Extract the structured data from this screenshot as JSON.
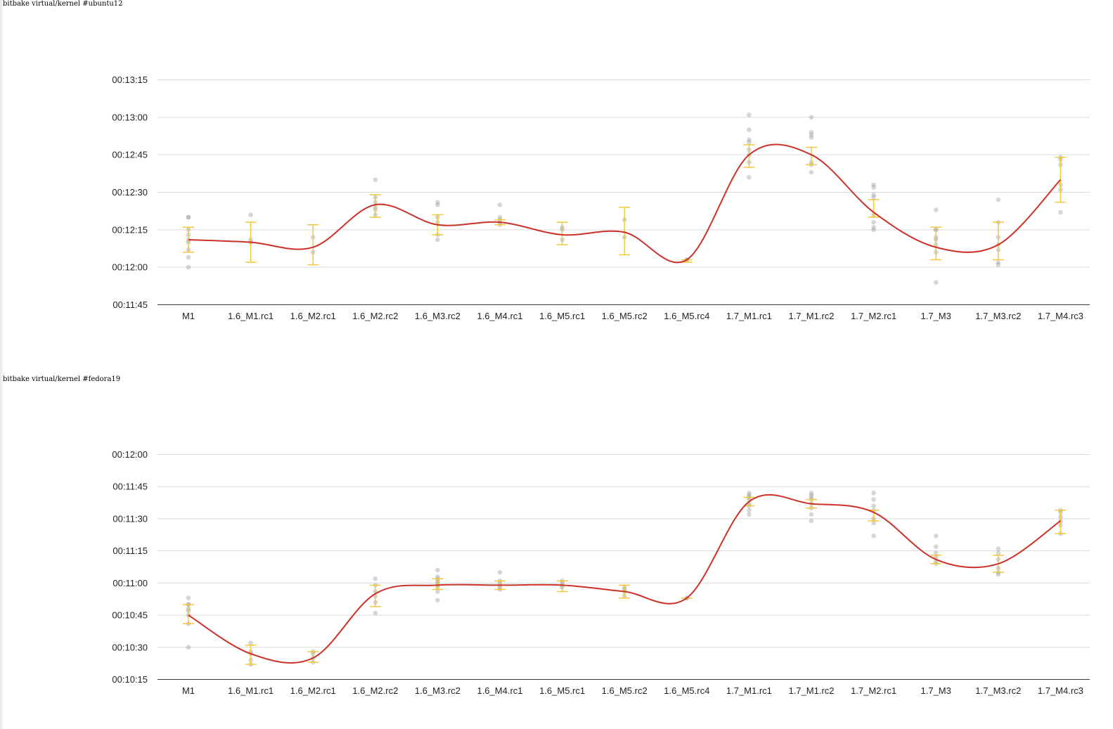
{
  "chart_data": [
    {
      "type": "line",
      "title": "bitbake virtual/kernel #ubuntu12",
      "categories": [
        "M1",
        "1.6_M1.rc1",
        "1.6_M2.rc1",
        "1.6_M2.rc2",
        "1.6_M3.rc2",
        "1.6_M4.rc1",
        "1.6_M5.rc1",
        "1.6_M5.rc2",
        "1.6_M5.rc4",
        "1.7_M1.rc1",
        "1.7_M1.rc2",
        "1.7_M2.rc1",
        "1.7_M3",
        "1.7_M3.rc2",
        "1.7_M4.rc3"
      ],
      "y_ticks": [
        "00:11:45",
        "00:12:00",
        "00:12:15",
        "00:12:30",
        "00:12:45",
        "00:13:00",
        "00:13:15"
      ],
      "ylim_seconds": [
        705,
        795
      ],
      "series": [
        {
          "values_seconds": [
            731,
            730,
            728,
            745,
            737,
            738,
            733,
            734,
            723,
            765,
            765,
            742,
            728,
            729,
            755
          ]
        }
      ],
      "error_bars_seconds": [
        [
          726,
          736
        ],
        [
          722,
          738
        ],
        [
          721,
          737
        ],
        [
          740,
          749
        ],
        [
          733,
          741
        ],
        [
          737,
          739
        ],
        [
          729,
          738
        ],
        [
          725,
          744
        ],
        [
          722,
          723
        ],
        [
          760,
          769
        ],
        [
          761,
          768
        ],
        [
          740,
          747
        ],
        [
          723,
          736
        ],
        [
          723,
          738
        ],
        [
          746,
          764
        ]
      ],
      "samples_seconds": [
        [
          720,
          724,
          727,
          730,
          731,
          733,
          735,
          740,
          740
        ],
        [
          730,
          731,
          741
        ],
        [
          726,
          732
        ],
        [
          741,
          743,
          744,
          746,
          748,
          755
        ],
        [
          731,
          733,
          738,
          740,
          745,
          746
        ],
        [
          737,
          738,
          739,
          740,
          745
        ],
        [
          731,
          735,
          736
        ],
        [
          732,
          739
        ],
        [
          723,
          723
        ],
        [
          756,
          762,
          765,
          767,
          770,
          771,
          775,
          781
        ],
        [
          758,
          761,
          762,
          772,
          773,
          774,
          780
        ],
        [
          735,
          736,
          738,
          741,
          748,
          749,
          752,
          753
        ],
        [
          714,
          726,
          729,
          731,
          732,
          735,
          735,
          743
        ],
        [
          721,
          722,
          727,
          729,
          732,
          738,
          747
        ],
        [
          742,
          751,
          753,
          761,
          763,
          764
        ]
      ]
    },
    {
      "type": "line",
      "title": "bitbake virtual/kernel #fedora19",
      "categories": [
        "M1",
        "1.6_M1.rc1",
        "1.6_M2.rc1",
        "1.6_M2.rc2",
        "1.6_M3.rc2",
        "1.6_M4.rc1",
        "1.6_M5.rc1",
        "1.6_M5.rc2",
        "1.6_M5.rc4",
        "1.7_M1.rc1",
        "1.7_M1.rc2",
        "1.7_M2.rc1",
        "1.7_M3",
        "1.7_M3.rc2",
        "1.7_M4.rc3"
      ],
      "y_ticks": [
        "00:10:15",
        "00:10:30",
        "00:10:45",
        "00:11:00",
        "00:11:15",
        "00:11:30",
        "00:11:45",
        "00:12:00"
      ],
      "ylim_seconds": [
        615,
        720
      ],
      "series": [
        {
          "values_seconds": [
            645,
            627,
            625,
            655,
            659,
            659,
            659,
            656,
            653,
            698,
            697,
            693,
            671,
            669,
            689
          ]
        }
      ],
      "error_bars_seconds": [
        [
          641,
          650
        ],
        [
          622,
          631
        ],
        [
          623,
          628
        ],
        [
          649,
          659
        ],
        [
          657,
          662
        ],
        [
          657,
          661
        ],
        [
          656,
          661
        ],
        [
          653,
          659
        ],
        [
          653,
          653
        ],
        [
          696,
          700
        ],
        [
          695,
          699
        ],
        [
          689,
          694
        ],
        [
          669,
          673
        ],
        [
          665,
          673
        ],
        [
          683,
          694
        ]
      ],
      "samples_seconds": [
        [
          630,
          641,
          645,
          647,
          648,
          650,
          650,
          653
        ],
        [
          622,
          624,
          627,
          628,
          632
        ],
        [
          623,
          625,
          627,
          628
        ],
        [
          646,
          651,
          654,
          656,
          659,
          662
        ],
        [
          652,
          656,
          658,
          659,
          660,
          661,
          662,
          663,
          666
        ],
        [
          657,
          658,
          659,
          660,
          661,
          665
        ],
        [
          658,
          659,
          660,
          661
        ],
        [
          654,
          656,
          657,
          658
        ],
        [
          653,
          653
        ],
        [
          692,
          694,
          696,
          697,
          699,
          700,
          701,
          702
        ],
        [
          689,
          692,
          695,
          697,
          699,
          700,
          701,
          702
        ],
        [
          682,
          688,
          690,
          694,
          696,
          699,
          702
        ],
        [
          669,
          670,
          672,
          674,
          677,
          682
        ],
        [
          664,
          665,
          667,
          671,
          674,
          676
        ],
        [
          683,
          687,
          689,
          691,
          693,
          694
        ]
      ]
    }
  ]
}
